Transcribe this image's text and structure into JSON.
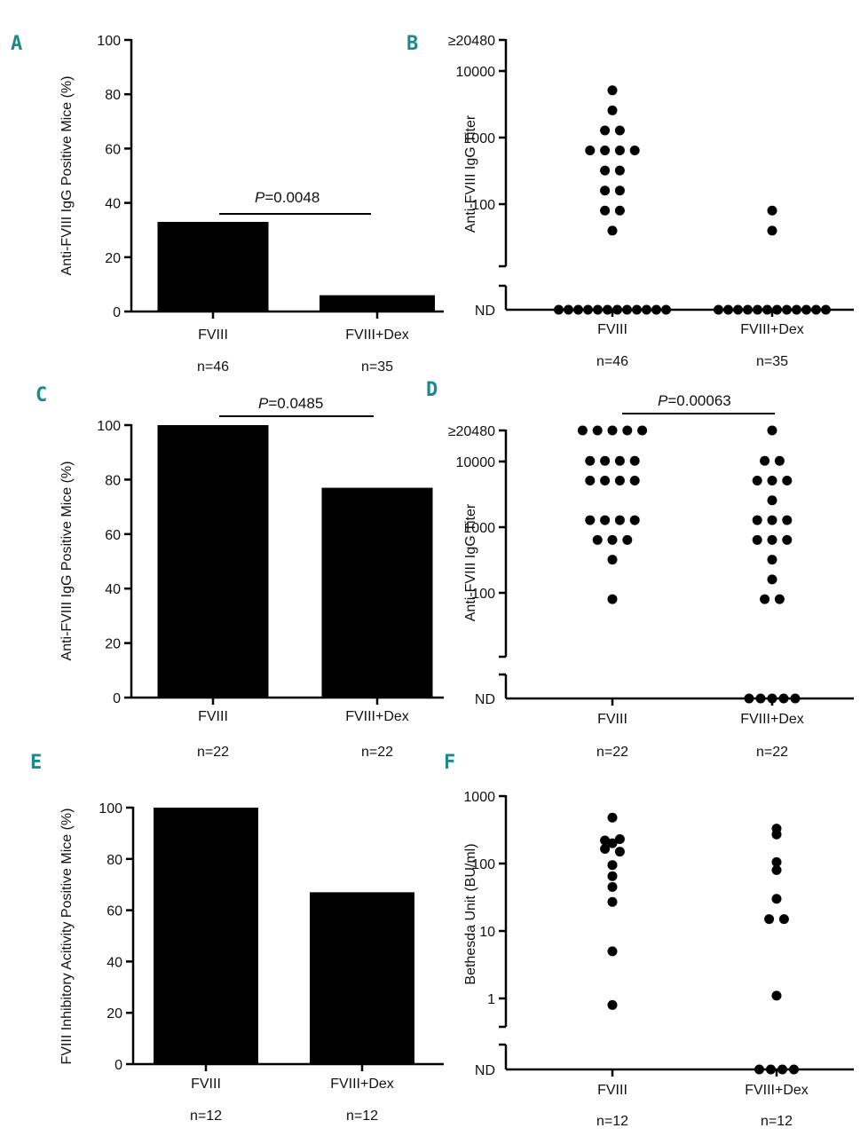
{
  "chart_data": [
    {
      "panel": "A",
      "type": "bar",
      "title": "",
      "ylabel": "Anti-FVIII IgG Positive Mice (%)",
      "ylim": [
        0,
        100
      ],
      "yticks": [
        "0",
        "20",
        "40",
        "60",
        "80",
        "100"
      ],
      "categories": [
        "FVIII",
        "FVIII+Dex"
      ],
      "n_labels": [
        "n=46",
        "n=35"
      ],
      "values": [
        33,
        6
      ],
      "pvalue": {
        "label": "P",
        "text": "=0.0048"
      }
    },
    {
      "panel": "B",
      "type": "scatter",
      "ylabel": "Anti-FVIII IgG Titer",
      "scale": "log",
      "yticks": [
        "ND",
        "100",
        "1000",
        "10000",
        "≥20480"
      ],
      "categories": [
        "FVIII",
        "FVIII+Dex"
      ],
      "n_labels": [
        "n=46",
        "n=35"
      ],
      "series": [
        {
          "name": "FVIII",
          "values": [
            5120,
            2560,
            1280,
            1280,
            640,
            640,
            640,
            640,
            320,
            320,
            160,
            160,
            80,
            80,
            40
          ],
          "nd_count": 31
        },
        {
          "name": "FVIII+Dex",
          "values": [
            80,
            40
          ],
          "nd_count": 33
        }
      ]
    },
    {
      "panel": "C",
      "type": "bar",
      "ylabel": "Anti-FVIII IgG Positive Mice (%)",
      "ylim": [
        0,
        100
      ],
      "yticks": [
        "0",
        "20",
        "40",
        "60",
        "80",
        "100"
      ],
      "categories": [
        "FVIII",
        "FVIII+Dex"
      ],
      "n_labels": [
        "n=22",
        "n=22"
      ],
      "values": [
        100,
        77
      ],
      "pvalue": {
        "label": "P",
        "text": "=0.0485"
      }
    },
    {
      "panel": "D",
      "type": "scatter",
      "ylabel": "Anti-FVIII IgG Titer",
      "scale": "log",
      "yticks": [
        "ND",
        "100",
        "1000",
        "10000",
        "≥20480"
      ],
      "categories": [
        "FVIII",
        "FVIII+Dex"
      ],
      "n_labels": [
        "n=22",
        "n=22"
      ],
      "series": [
        {
          "name": "FVIII",
          "values": [
            20480,
            20480,
            20480,
            20480,
            20480,
            10240,
            10240,
            10240,
            10240,
            5120,
            5120,
            5120,
            5120,
            1280,
            1280,
            1280,
            1280,
            640,
            640,
            640,
            320,
            80
          ],
          "nd_count": 0
        },
        {
          "name": "FVIII+Dex",
          "values": [
            20480,
            10240,
            10240,
            5120,
            5120,
            5120,
            2560,
            1280,
            1280,
            1280,
            640,
            640,
            640,
            320,
            160,
            80,
            80
          ],
          "nd_count": 5
        }
      ],
      "pvalue": {
        "label": "P",
        "text": "=0.00063"
      }
    },
    {
      "panel": "E",
      "type": "bar",
      "ylabel": "FVIII Inhibitory Acitivity  Positive Mice (%)",
      "ylim": [
        0,
        100
      ],
      "yticks": [
        "0",
        "20",
        "40",
        "60",
        "80",
        "100"
      ],
      "categories": [
        "FVIII",
        "FVIII+Dex"
      ],
      "n_labels": [
        "n=12",
        "n=12"
      ],
      "values": [
        100,
        67
      ]
    },
    {
      "panel": "F",
      "type": "scatter",
      "ylabel": "Bethesda Unit (BU/ml)",
      "scale": "log",
      "yticks": [
        "ND",
        "1",
        "10",
        "100",
        "1000"
      ],
      "categories": [
        "FVIII",
        "FVIII+Dex"
      ],
      "n_labels": [
        "n=12",
        "n=12"
      ],
      "series": [
        {
          "name": "FVIII",
          "values": [
            480,
            220,
            230,
            200,
            165,
            150,
            95,
            65,
            45,
            27,
            5,
            0.8
          ],
          "nd_count": 0
        },
        {
          "name": "FVIII+Dex",
          "values": [
            330,
            270,
            105,
            80,
            30,
            15,
            15,
            1.1
          ],
          "nd_count": 4
        }
      ]
    }
  ]
}
